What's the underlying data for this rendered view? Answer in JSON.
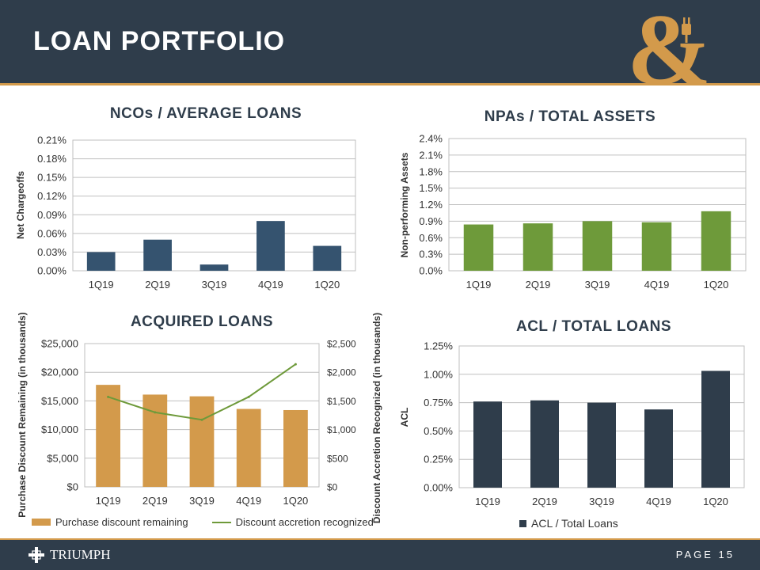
{
  "header": {
    "title": "LOAN PORTFOLIO"
  },
  "footer": {
    "brand": "TRIUMPH",
    "page_label": "PAGE 15"
  },
  "colors": {
    "navy": "#2f3d4b",
    "gold": "#d39a4b",
    "green": "#6e9a3a",
    "blue": "#35536f"
  },
  "chart_data": [
    {
      "id": "ncos",
      "type": "bar",
      "title": "NCOs / AVERAGE LOANS",
      "ylabel": "Net Chargeoffs",
      "categories": [
        "1Q19",
        "2Q19",
        "3Q19",
        "4Q19",
        "1Q20"
      ],
      "values": [
        0.03,
        0.05,
        0.01,
        0.08,
        0.04
      ],
      "ylim": [
        0,
        0.21
      ],
      "yticks": [
        0,
        0.03,
        0.06,
        0.09,
        0.12,
        0.15,
        0.18,
        0.21
      ],
      "ytick_labels": [
        "0.00%",
        "0.03%",
        "0.06%",
        "0.09%",
        "0.12%",
        "0.15%",
        "0.18%",
        "0.21%"
      ],
      "grid": true
    },
    {
      "id": "npas",
      "type": "bar",
      "title": "NPAs / TOTAL ASSETS",
      "ylabel": "Non-performing Assets",
      "categories": [
        "1Q19",
        "2Q19",
        "3Q19",
        "4Q19",
        "1Q20"
      ],
      "values": [
        0.84,
        0.86,
        0.9,
        0.88,
        1.08
      ],
      "ylim": [
        0,
        2.4
      ],
      "yticks": [
        0,
        0.3,
        0.6,
        0.9,
        1.2,
        1.5,
        1.8,
        2.1,
        2.4
      ],
      "ytick_labels": [
        "0.0%",
        "0.3%",
        "0.6%",
        "0.9%",
        "1.2%",
        "1.5%",
        "1.8%",
        "2.1%",
        "2.4%"
      ],
      "grid": true
    },
    {
      "id": "acquired",
      "type": "bar",
      "title": "ACQUIRED LOANS",
      "ylabel": "Purchase Discount Remaining (in thousands)",
      "y2label": "Discount Accretion Recognized (in thousands)",
      "categories": [
        "1Q19",
        "2Q19",
        "3Q19",
        "4Q19",
        "1Q20"
      ],
      "ylim": [
        0,
        25000
      ],
      "yticks": [
        0,
        5000,
        10000,
        15000,
        20000,
        25000
      ],
      "ytick_labels": [
        "$0",
        "$5,000",
        "$10,000",
        "$15,000",
        "$20,000",
        "$25,000"
      ],
      "y2lim": [
        0,
        2500
      ],
      "y2ticks": [
        0,
        500,
        1000,
        1500,
        2000,
        2500
      ],
      "y2tick_labels": [
        "$0",
        "$500",
        "$1,000",
        "$1,500",
        "$2,000",
        "$2,500"
      ],
      "series": [
        {
          "name": "Purchase discount remaining",
          "type": "bar",
          "values": [
            17800,
            16100,
            15800,
            13600,
            13400
          ]
        },
        {
          "name": "Discount accretion recognized",
          "type": "line",
          "axis": "right",
          "values": [
            1570,
            1300,
            1170,
            1570,
            2140
          ]
        }
      ],
      "legend": "bottom",
      "grid": true
    },
    {
      "id": "acl",
      "type": "bar",
      "title": "ACL / TOTAL LOANS",
      "ylabel": "ACL",
      "categories": [
        "1Q19",
        "2Q19",
        "3Q19",
        "4Q19",
        "1Q20"
      ],
      "series": [
        {
          "name": "ACL / Total Loans",
          "values": [
            0.76,
            0.77,
            0.75,
            0.69,
            1.03
          ]
        }
      ],
      "ylim": [
        0,
        1.25
      ],
      "yticks": [
        0,
        0.25,
        0.5,
        0.75,
        1.0,
        1.25
      ],
      "ytick_labels": [
        "0.00%",
        "0.25%",
        "0.50%",
        "0.75%",
        "1.00%",
        "1.25%"
      ],
      "legend": "bottom",
      "grid": true
    }
  ]
}
